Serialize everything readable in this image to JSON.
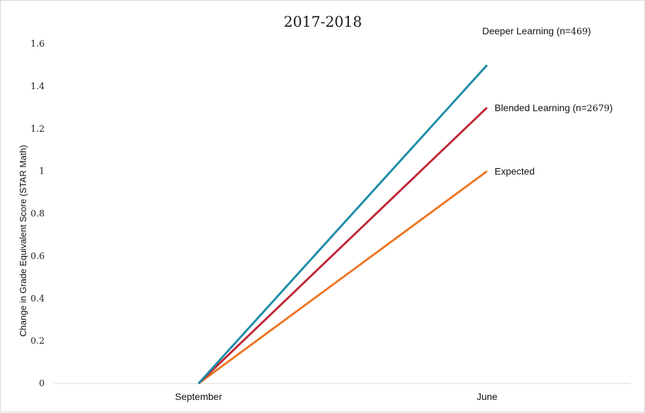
{
  "chart_data": {
    "type": "line",
    "title": "2017-2018",
    "xlabel": "",
    "ylabel": "Change in Grade Equivalent Score (STAR Math)",
    "categories": [
      "September",
      "June"
    ],
    "ylim": [
      0,
      1.6
    ],
    "yticks": [
      "0",
      "0.2",
      "0.4",
      "0.6",
      "0.8",
      "1",
      "1.2",
      "1.4",
      "1.6"
    ],
    "ytick_values": [
      0,
      0.2,
      0.4,
      0.6,
      0.8,
      1.0,
      1.2,
      1.4,
      1.6
    ],
    "grid": false,
    "legend": "end-of-line labels",
    "series": [
      {
        "name": "Deeper Learning (n=469)",
        "name_text": "Deeper Learning (n=",
        "name_num": "469",
        "name_tail": ")",
        "values": [
          0,
          1.5
        ],
        "color": "#1a8ca6"
      },
      {
        "name": "Blended Learning (n=2679)",
        "name_text": "Blended Learning (n=",
        "name_num": "2679",
        "name_tail": ")",
        "values": [
          0,
          1.3
        ],
        "color": "#be2434"
      },
      {
        "name": "Expected",
        "name_text": "Expected",
        "name_num": "",
        "name_tail": "",
        "values": [
          0,
          1.0
        ],
        "color": "#ee7421"
      }
    ]
  }
}
